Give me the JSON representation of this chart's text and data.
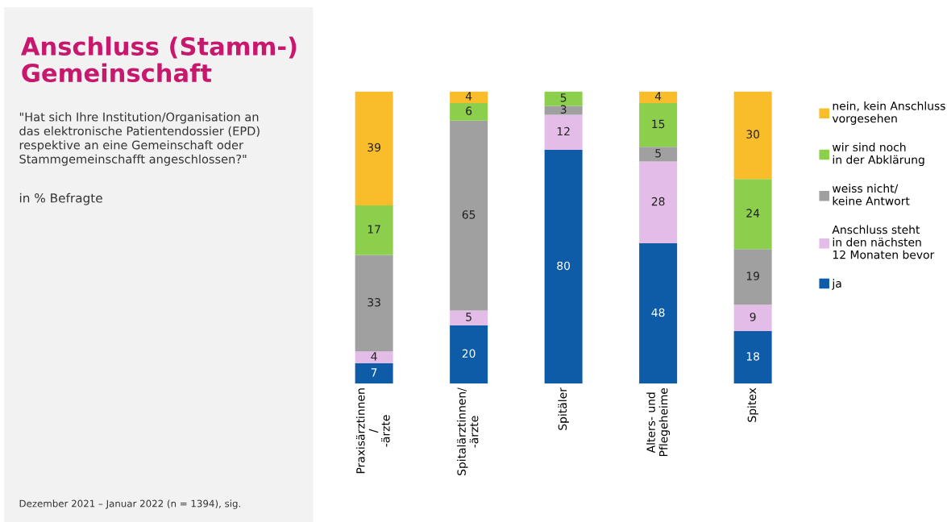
{
  "chart_data": {
    "type": "bar",
    "stacked": true,
    "title": "Anschluss (Stamm-)\nGemeinschaft",
    "subtitle": "\"Hat sich Ihre Institution/Organisation an\ndas elektronische Patientendossier (EPD)\nrespektive an eine Gemeinschaft oder\nStammgemeinschafft angeschlossen?\"",
    "annotations": [
      "in % Befragte",
      "Dezember 2021 – Januar 2022 (n = 1394), sig."
    ],
    "categories": [
      "Praxisärztinnen\n/\n-ärzte",
      "Spitalärztinnen/\n-ärzte",
      "Spitäler",
      "Alters- und\nPflegeheime",
      "Spitex"
    ],
    "series": [
      {
        "name": "ja",
        "color": "#0e5ca8",
        "values": [
          7,
          20,
          80,
          48,
          18
        ]
      },
      {
        "name": "Anschluss steht\nin den nächsten\n12 Monaten bevor",
        "color": "#e3bde8",
        "values": [
          4,
          5,
          12,
          28,
          9
        ]
      },
      {
        "name": "weiss nicht/\nkeine Antwort",
        "color": "#a0a0a0",
        "values": [
          33,
          65,
          3,
          5,
          19
        ]
      },
      {
        "name": "wir sind noch\nin der Abklärung",
        "color": "#8ccf4d",
        "values": [
          17,
          6,
          5,
          15,
          24
        ]
      },
      {
        "name": "nein, kein Anschluss\nvorgesehen",
        "color": "#f9bc2a",
        "values": [
          39,
          4,
          null,
          4,
          30
        ]
      }
    ],
    "data_labels": true,
    "legend": "right",
    "marker": "square",
    "grid": false
  }
}
